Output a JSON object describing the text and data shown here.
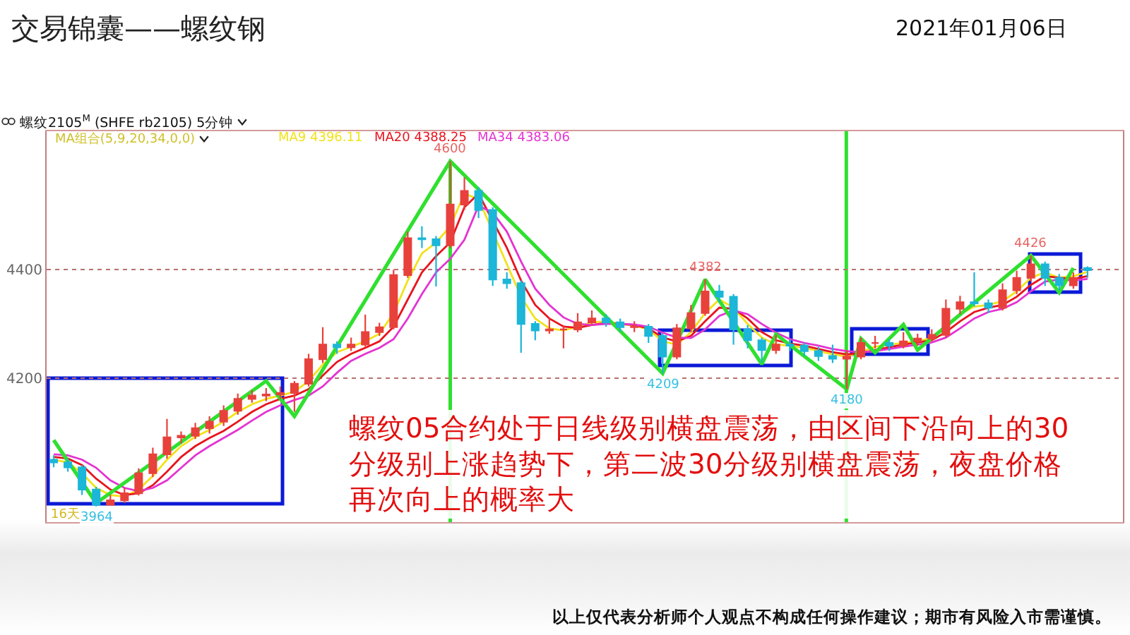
{
  "chart_data": {
    "type": "candlestick",
    "title": "交易锦囊——螺纹钢",
    "subtitle": "螺纹2105$^{M}$ (SHFE rb2105) 5分钟",
    "categories": [
      null,
      null,
      null,
      null,
      null,
      null,
      null,
      null,
      null,
      null,
      null,
      null,
      null,
      null,
      null,
      null,
      null,
      null,
      null,
      null,
      null,
      null,
      null,
      null,
      null,
      null,
      null,
      null,
      null,
      null,
      null,
      null,
      null,
      null,
      null,
      null,
      null,
      null,
      null,
      null,
      null,
      null,
      null,
      null,
      null,
      null,
      null,
      null,
      null,
      null,
      null,
      null,
      null,
      null,
      null,
      null,
      null,
      null,
      null,
      null,
      null,
      null,
      null,
      null,
      null,
      null,
      null,
      null,
      null,
      null,
      null,
      null,
      null,
      null,
      null,
      null
    ],
    "ohlc": [
      [
        4050,
        4058,
        4036,
        4045
      ],
      [
        4045,
        4052,
        4028,
        4036
      ],
      [
        4036,
        4040,
        3985,
        3995
      ],
      [
        3995,
        4000,
        3964,
        3967
      ],
      [
        3967,
        3985,
        3966,
        3975
      ],
      [
        3975,
        3998,
        3970,
        3988
      ],
      [
        3988,
        4034,
        3984,
        4025
      ],
      [
        4025,
        4072,
        4018,
        4060
      ],
      [
        4060,
        4125,
        4052,
        4091
      ],
      [
        4091,
        4102,
        4080,
        4094
      ],
      [
        4094,
        4118,
        4088,
        4108
      ],
      [
        4108,
        4130,
        4098,
        4120
      ],
      [
        4120,
        4150,
        4112,
        4140
      ],
      [
        4140,
        4172,
        4133,
        4162
      ],
      [
        4162,
        4178,
        4155,
        4168
      ],
      [
        4168,
        4182,
        4158,
        4170
      ],
      [
        4170,
        4185,
        4162,
        4173
      ],
      [
        4173,
        4195,
        4138,
        4190
      ],
      [
        4190,
        4245,
        4185,
        4235
      ],
      [
        4235,
        4294,
        4228,
        4262
      ],
      [
        4262,
        4268,
        4245,
        4257
      ],
      [
        4257,
        4275,
        4250,
        4262
      ],
      [
        4262,
        4317,
        4258,
        4285
      ],
      [
        4285,
        4302,
        4278,
        4294
      ],
      [
        4294,
        4400,
        4290,
        4390
      ],
      [
        4390,
        4470,
        4385,
        4458
      ],
      [
        4458,
        4480,
        4440,
        4456
      ],
      [
        4456,
        4462,
        4369,
        4445
      ],
      [
        4445,
        4600,
        4440,
        4520
      ],
      [
        4520,
        4570,
        4510,
        4545
      ],
      [
        4545,
        4552,
        4495,
        4510
      ],
      [
        4510,
        4515,
        4370,
        4382
      ],
      [
        4382,
        4395,
        4365,
        4375
      ],
      [
        4375,
        4380,
        4247,
        4300
      ],
      [
        4300,
        4305,
        4270,
        4288
      ],
      [
        4288,
        4310,
        4282,
        4290
      ],
      [
        4290,
        4298,
        4255,
        4290
      ],
      [
        4290,
        4320,
        4285,
        4303
      ],
      [
        4303,
        4325,
        4298,
        4310
      ],
      [
        4310,
        4318,
        4295,
        4303
      ],
      [
        4303,
        4310,
        4286,
        4294
      ],
      [
        4294,
        4305,
        4285,
        4295
      ],
      [
        4295,
        4300,
        4265,
        4278
      ],
      [
        4278,
        4282,
        4209,
        4240
      ],
      [
        4240,
        4300,
        4235,
        4292
      ],
      [
        4292,
        4335,
        4285,
        4320
      ],
      [
        4320,
        4382,
        4315,
        4360
      ],
      [
        4360,
        4372,
        4340,
        4350
      ],
      [
        4350,
        4355,
        4262,
        4290
      ],
      [
        4290,
        4298,
        4255,
        4270
      ],
      [
        4270,
        4275,
        4228,
        4252
      ],
      [
        4252,
        4280,
        4245,
        4262
      ],
      [
        4262,
        4272,
        4250,
        4260
      ],
      [
        4260,
        4265,
        4240,
        4250
      ],
      [
        4250,
        4258,
        4232,
        4241
      ],
      [
        4241,
        4262,
        4228,
        4236
      ],
      [
        4236,
        4252,
        4180,
        4240
      ],
      [
        4240,
        4275,
        4235,
        4265
      ],
      [
        4265,
        4278,
        4255,
        4265
      ],
      [
        4265,
        4272,
        4250,
        4260
      ],
      [
        4260,
        4285,
        4255,
        4268
      ],
      [
        4268,
        4282,
        4260,
        4273
      ],
      [
        4273,
        4290,
        4268,
        4280
      ],
      [
        4280,
        4345,
        4275,
        4328
      ],
      [
        4328,
        4352,
        4318,
        4340
      ],
      [
        4340,
        4395,
        4332,
        4338
      ],
      [
        4338,
        4345,
        4320,
        4330
      ],
      [
        4330,
        4375,
        4325,
        4362
      ],
      [
        4362,
        4398,
        4355,
        4385
      ],
      [
        4385,
        4426,
        4378,
        4410
      ],
      [
        4410,
        4415,
        4370,
        4385
      ],
      [
        4385,
        4392,
        4362,
        4371
      ],
      [
        4371,
        4395,
        4365,
        4385
      ],
      [
        4403,
        4406,
        4385,
        4399
      ],
      null,
      null
    ],
    "series": [
      {
        "name": "MA9 4396.11",
        "color": "#f2e21a",
        "type": "line",
        "values": [
          4050,
          4045,
          4025,
          3998,
          3985,
          3982,
          3995,
          4020,
          4050,
          4075,
          4092,
          4105,
          4120,
          4138,
          4152,
          4162,
          4168,
          4175,
          4195,
          4225,
          4248,
          4258,
          4268,
          4282,
          4320,
          4380,
          4430,
          4450,
          4480,
          4540,
          4530,
          null,
          4410,
          4350,
          4310,
          4292,
          4288,
          4295,
          4303,
          4305,
          4300,
          4297,
          4290,
          4268,
          4262,
          4285,
          4320,
          4345,
          4330,
          4300,
          4275,
          4262,
          4260,
          4256,
          4250,
          4244,
          4240,
          4248,
          4258,
          4262,
          4265,
          4268,
          4274,
          null,
          4318,
          4332,
          4335,
          4342,
          4360,
          4385,
          4395,
          4385,
          4388,
          4396,
          null,
          null
        ]
      },
      {
        "name": "MA20 4388.25",
        "color": "#e8141e",
        "type": "line",
        "values": [
          4055,
          4052,
          4040,
          4015,
          3995,
          3985,
          3988,
          4003,
          4028,
          4055,
          4075,
          4090,
          4103,
          4120,
          4138,
          4152,
          4162,
          4168,
          4180,
          4205,
          4230,
          4245,
          4256,
          4268,
          4295,
          4345,
          4395,
          4425,
          4450,
          4515,
          4540,
          null,
          4440,
          4380,
          4335,
          4310,
          4295,
          4293,
          4298,
          4302,
          4300,
          4298,
          4292,
          4275,
          4268,
          4278,
          4305,
          4330,
          4328,
          4310,
          4285,
          4270,
          4264,
          4260,
          4254,
          4248,
          4244,
          4246,
          4252,
          4257,
          4262,
          4266,
          4270,
          4285,
          4305,
          4322,
          4330,
          4335,
          4350,
          4372,
          4388,
          4385,
          4383,
          4388,
          null,
          null
        ]
      },
      {
        "name": "MA34 4383.06",
        "color": "#e434d2",
        "type": "line",
        "values": [
          4060,
          4058,
          4050,
          4035,
          4012,
          3998,
          3992,
          3998,
          4012,
          4035,
          4058,
          4075,
          4090,
          4105,
          4122,
          4138,
          4150,
          4160,
          4168,
          4185,
          4210,
          4232,
          4245,
          4256,
          4272,
          4310,
          4355,
          4395,
          4420,
          4455,
          4518,
          4505,
          4470,
          4415,
          4365,
          4335,
          4312,
          4300,
          4298,
          4300,
          4300,
          4299,
          4295,
          4284,
          4275,
          4274,
          4290,
          4315,
          4325,
          4318,
          4300,
          4284,
          4272,
          4265,
          4260,
          4254,
          4250,
          4248,
          4250,
          4254,
          4258,
          4262,
          4266,
          4275,
          4292,
          4310,
          4322,
          4328,
          4340,
          4360,
          4378,
          4382,
          4380,
          4383,
          null,
          null
        ]
      },
      {
        "color": "#2fe02f",
        "type": "line",
        "values": [
          4086,
          null,
          null,
          3970,
          null,
          null,
          null,
          null,
          null,
          null,
          null,
          null,
          null,
          null,
          null,
          4195,
          null,
          4130,
          null,
          null,
          null,
          null,
          null,
          null,
          null,
          null,
          null,
          null,
          4600,
          null,
          null,
          null,
          null,
          null,
          null,
          null,
          null,
          null,
          null,
          null,
          null,
          null,
          null,
          4209,
          null,
          null,
          4382,
          null,
          null,
          null,
          4226,
          4281,
          null,
          null,
          null,
          null,
          4180,
          4273,
          4247,
          null,
          4299,
          4252,
          null,
          null,
          null,
          null,
          null,
          null,
          null,
          4426,
          null,
          4358,
          4403,
          null,
          null,
          null
        ]
      }
    ],
    "ylim": [
      3935,
      4655
    ],
    "yticks": [
      4200,
      4400
    ],
    "grid": "y",
    "tick_labels": "y",
    "legend": "top left",
    "annotations": [
      "2021年01月06日",
      "MA组合(5,9,20,34,0,0)",
      "16天",
      "螺纹05合约处于日线级别横盘震荡，由区间下沿向上的30分级别上涨趋势下，第二波30分级别横盘震荡，夜盘价格再次向上的概率大",
      "以上仅代表分析师个人观点不构成任何操作建议；期市有风险入市需谨慎。",
      {
        "text": "4600",
        "y": 4600
      },
      {
        "text": "4382",
        "y": 4382
      },
      {
        "text": "4426",
        "y": 4426
      },
      {
        "text": "3964",
        "y": 3964
      },
      {
        "text": "4209",
        "y": 4209
      },
      {
        "text": "4180",
        "y": 4180
      }
    ]
  }
}
